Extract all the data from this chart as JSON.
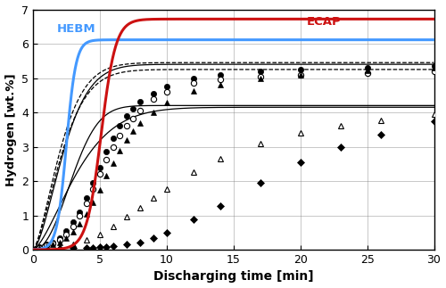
{
  "xlabel": "Discharging time [min]",
  "ylabel": "Hydrogen [wt.%]",
  "xlim": [
    0,
    30
  ],
  "ylim": [
    0,
    7
  ],
  "yticks": [
    0,
    1,
    2,
    3,
    4,
    5,
    6,
    7
  ],
  "xticks": [
    0,
    5,
    10,
    15,
    20,
    25,
    30
  ],
  "hebm_label": "HEBM",
  "ecap_label": "ECAP",
  "hebm_color": "#4499ff",
  "ecap_color": "#cc1111",
  "background_color": "#ffffff",
  "curves": {
    "hebm": {
      "L": 6.12,
      "k": 2.8,
      "x0": 2.5
    },
    "ecap": {
      "L": 6.72,
      "k": 1.85,
      "x0": 5.1
    }
  },
  "data_series": [
    {
      "name": "filled_circles",
      "marker": "o",
      "filled": true,
      "line": "dashed",
      "points_x": [
        0.5,
        1.0,
        1.5,
        2.0,
        2.5,
        3.0,
        3.5,
        4.0,
        4.5,
        5.0,
        5.5,
        6.0,
        6.5,
        7.0,
        7.5,
        8.0,
        9.0,
        10.0,
        12.0,
        14.0,
        17.0,
        20.0,
        25.0,
        30.0
      ],
      "points_y": [
        0.08,
        0.15,
        0.22,
        0.35,
        0.55,
        0.8,
        1.1,
        1.5,
        1.95,
        2.4,
        2.85,
        3.25,
        3.6,
        3.9,
        4.1,
        4.3,
        4.55,
        4.75,
        5.0,
        5.1,
        5.2,
        5.25,
        5.3,
        5.35
      ],
      "fit_A": 5.45,
      "fit_k": 0.26,
      "fit_n": 1.5
    },
    {
      "name": "open_circles",
      "marker": "o",
      "filled": false,
      "line": "dashed",
      "points_x": [
        0.5,
        1.0,
        1.5,
        2.0,
        2.5,
        3.0,
        3.5,
        4.0,
        4.5,
        5.0,
        5.5,
        6.0,
        6.5,
        7.0,
        7.5,
        8.0,
        9.0,
        10.0,
        12.0,
        14.0,
        17.0,
        20.0,
        25.0,
        30.0
      ],
      "points_y": [
        0.06,
        0.12,
        0.18,
        0.28,
        0.45,
        0.68,
        0.98,
        1.35,
        1.78,
        2.2,
        2.62,
        3.0,
        3.32,
        3.6,
        3.82,
        4.05,
        4.38,
        4.6,
        4.85,
        4.95,
        5.05,
        5.1,
        5.15,
        5.2
      ],
      "fit_A": 5.25,
      "fit_k": 0.24,
      "fit_n": 1.5
    },
    {
      "name": "filled_triangles",
      "marker": "^",
      "filled": true,
      "line": "solid",
      "points_x": [
        0.5,
        1.0,
        1.5,
        2.0,
        2.5,
        3.0,
        3.5,
        4.0,
        4.5,
        5.0,
        5.5,
        6.0,
        6.5,
        7.0,
        7.5,
        8.0,
        9.0,
        10.0,
        12.0,
        14.0,
        17.0,
        20.0,
        25.0,
        30.0
      ],
      "points_y": [
        0.05,
        0.1,
        0.15,
        0.22,
        0.35,
        0.52,
        0.75,
        1.05,
        1.38,
        1.75,
        2.15,
        2.52,
        2.88,
        3.2,
        3.45,
        3.68,
        4.0,
        4.28,
        4.62,
        4.8,
        4.98,
        5.1,
        5.22,
        5.3
      ],
      "fit_A": 5.4,
      "fit_k": 0.2,
      "fit_n": 1.6
    },
    {
      "name": "open_triangles",
      "marker": "^",
      "filled": false,
      "line": "solid",
      "points_x": [
        1.0,
        2.0,
        3.0,
        4.0,
        5.0,
        6.0,
        7.0,
        8.0,
        9.0,
        10.0,
        12.0,
        14.0,
        17.0,
        20.0,
        23.0,
        26.0,
        30.0
      ],
      "points_y": [
        0.04,
        0.08,
        0.15,
        0.28,
        0.45,
        0.68,
        0.95,
        1.22,
        1.5,
        1.78,
        2.25,
        2.65,
        3.1,
        3.4,
        3.6,
        3.78,
        3.95
      ],
      "fit_A": 4.15,
      "fit_k": 0.13,
      "fit_n": 1.5
    },
    {
      "name": "filled_diamonds",
      "marker": "D",
      "filled": true,
      "line": "solid",
      "points_x": [
        1.0,
        2.0,
        3.0,
        4.0,
        4.5,
        5.0,
        5.5,
        6.0,
        7.0,
        8.0,
        9.0,
        10.0,
        12.0,
        14.0,
        17.0,
        20.0,
        23.0,
        26.0,
        30.0
      ],
      "points_y": [
        0.02,
        0.03,
        0.04,
        0.05,
        0.06,
        0.07,
        0.08,
        0.1,
        0.15,
        0.22,
        0.35,
        0.5,
        0.88,
        1.28,
        1.95,
        2.55,
        3.0,
        3.35,
        3.75
      ],
      "fit_A": 4.2,
      "fit_k": 0.065,
      "fit_n": 2.2
    }
  ]
}
